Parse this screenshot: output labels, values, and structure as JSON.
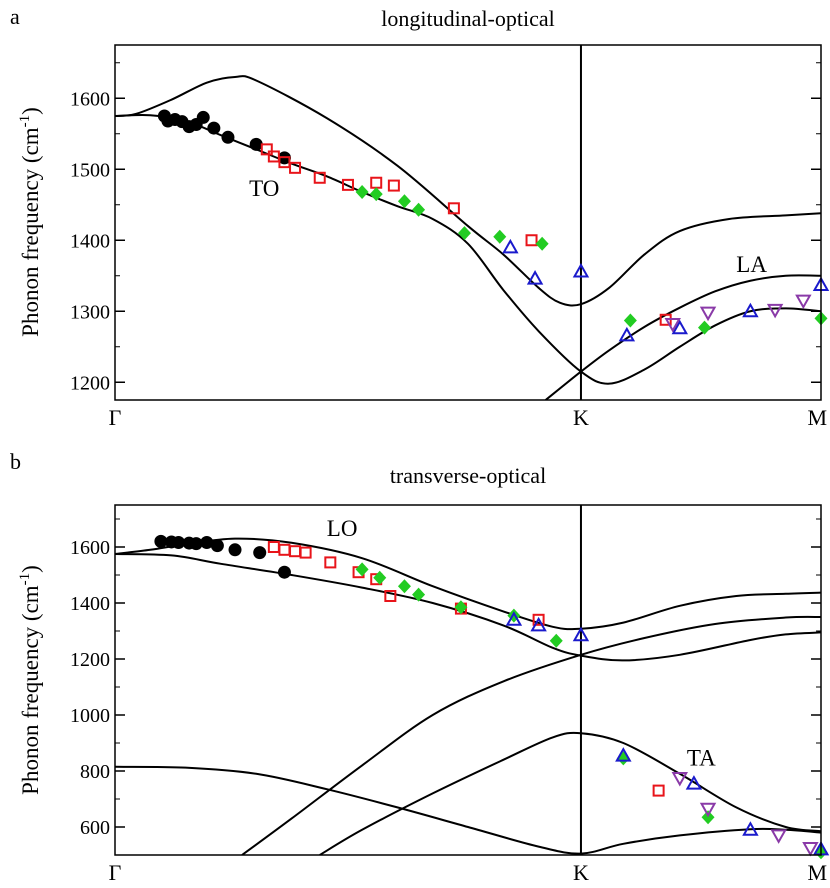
{
  "chart_data": [
    {
      "type": "scatter",
      "panel_label": "a",
      "title": "longitudinal-optical",
      "ylabel_main": "Phonon frequency (cm",
      "ylabel_sup": "-1",
      "ylabel_close": ")",
      "ylim": [
        1175,
        1675
      ],
      "yticks": [
        1200,
        1300,
        1400,
        1500,
        1600
      ],
      "xlim": [
        0,
        1
      ],
      "xticks": [
        {
          "pos": 0,
          "label": "Γ"
        },
        {
          "pos": 0.66,
          "label": "K"
        },
        {
          "pos": 1,
          "label": "M"
        }
      ],
      "annotations": [
        {
          "text": "TO",
          "x": 0.19,
          "y": 1462
        },
        {
          "text": "LA",
          "x": 0.88,
          "y": 1355
        }
      ],
      "curves": [
        [
          [
            0,
            1575
          ],
          [
            0.03,
            1578
          ],
          [
            0.08,
            1598
          ],
          [
            0.13,
            1622
          ],
          [
            0.17,
            1630
          ],
          [
            0.2,
            1625
          ],
          [
            0.3,
            1572
          ],
          [
            0.4,
            1505
          ],
          [
            0.5,
            1420
          ],
          [
            0.55,
            1380
          ],
          [
            0.6,
            1333
          ],
          [
            0.63,
            1312
          ],
          [
            0.66,
            1310
          ],
          [
            0.7,
            1333
          ],
          [
            0.75,
            1380
          ],
          [
            0.8,
            1413
          ],
          [
            0.87,
            1430
          ],
          [
            0.95,
            1435
          ],
          [
            1,
            1438
          ]
        ],
        [
          [
            0,
            1575
          ],
          [
            0.05,
            1576
          ],
          [
            0.1,
            1568
          ],
          [
            0.15,
            1548
          ],
          [
            0.2,
            1528
          ],
          [
            0.25,
            1508
          ],
          [
            0.3,
            1490
          ],
          [
            0.35,
            1468
          ],
          [
            0.4,
            1448
          ],
          [
            0.45,
            1430
          ],
          [
            0.5,
            1395
          ],
          [
            0.55,
            1330
          ],
          [
            0.6,
            1272
          ],
          [
            0.66,
            1215
          ],
          [
            0.7,
            1198
          ],
          [
            0.75,
            1218
          ],
          [
            0.8,
            1250
          ],
          [
            0.85,
            1280
          ],
          [
            0.9,
            1300
          ],
          [
            0.95,
            1304
          ],
          [
            1,
            1300
          ]
        ],
        [
          [
            0.61,
            1175
          ],
          [
            0.66,
            1215
          ],
          [
            0.7,
            1245
          ],
          [
            0.75,
            1278
          ],
          [
            0.8,
            1305
          ],
          [
            0.85,
            1328
          ],
          [
            0.9,
            1343
          ],
          [
            0.95,
            1350
          ],
          [
            1,
            1350
          ]
        ]
      ],
      "series": [
        {
          "marker": "circle",
          "color": "#000000",
          "points": [
            [
              0.07,
              1575
            ],
            [
              0.075,
              1568
            ],
            [
              0.085,
              1570
            ],
            [
              0.095,
              1567
            ],
            [
              0.105,
              1560
            ],
            [
              0.115,
              1563
            ],
            [
              0.125,
              1573
            ],
            [
              0.14,
              1558
            ],
            [
              0.16,
              1545
            ],
            [
              0.2,
              1535
            ],
            [
              0.24,
              1516
            ]
          ]
        },
        {
          "marker": "square",
          "color": "#e8141a",
          "points": [
            [
              0.215,
              1528
            ],
            [
              0.225,
              1518
            ],
            [
              0.24,
              1510
            ],
            [
              0.255,
              1502
            ],
            [
              0.29,
              1488
            ],
            [
              0.33,
              1478
            ],
            [
              0.37,
              1481
            ],
            [
              0.395,
              1477
            ],
            [
              0.48,
              1445
            ],
            [
              0.59,
              1400
            ]
          ]
        },
        {
          "marker": "diamond",
          "color": "#22cc22",
          "points": [
            [
              0.35,
              1468
            ],
            [
              0.37,
              1465
            ],
            [
              0.41,
              1455
            ],
            [
              0.43,
              1443
            ],
            [
              0.495,
              1410
            ],
            [
              0.545,
              1405
            ],
            [
              0.605,
              1395
            ],
            [
              0.73,
              1287
            ],
            [
              0.835,
              1277
            ],
            [
              1,
              1290
            ]
          ]
        },
        {
          "marker": "triangle-up",
          "color": "#1a1acc",
          "points": [
            [
              0.56,
              1390
            ],
            [
              0.595,
              1346
            ],
            [
              0.66,
              1356
            ],
            [
              0.725,
              1266
            ],
            [
              0.8,
              1276
            ],
            [
              0.9,
              1300
            ],
            [
              1,
              1337
            ]
          ]
        },
        {
          "marker": "square",
          "color": "#e8141a",
          "points": [
            [
              0.78,
              1288
            ]
          ]
        },
        {
          "marker": "triangle-down",
          "color": "#8a3aa8",
          "points": [
            [
              0.79,
              1282
            ],
            [
              0.84,
              1298
            ],
            [
              0.935,
              1302
            ],
            [
              0.975,
              1315
            ]
          ]
        }
      ]
    },
    {
      "type": "scatter",
      "panel_label": "b",
      "title": "transverse-optical",
      "ylabel_main": "Phonon frequency (cm",
      "ylabel_sup": "-1",
      "ylabel_close": ")",
      "ylim": [
        500,
        1750
      ],
      "yticks": [
        600,
        800,
        1000,
        1200,
        1400,
        1600
      ],
      "xlim": [
        0,
        1
      ],
      "xticks": [
        {
          "pos": 0,
          "label": "Γ"
        },
        {
          "pos": 0.66,
          "label": "K"
        },
        {
          "pos": 1,
          "label": "M"
        }
      ],
      "annotations": [
        {
          "text": "LO",
          "x": 0.3,
          "y": 1640
        },
        {
          "text": "TA",
          "x": 0.81,
          "y": 820
        }
      ],
      "curves": [
        [
          [
            0,
            1575
          ],
          [
            0.05,
            1590
          ],
          [
            0.1,
            1610
          ],
          [
            0.17,
            1630
          ],
          [
            0.25,
            1615
          ],
          [
            0.35,
            1560
          ],
          [
            0.45,
            1460
          ],
          [
            0.55,
            1370
          ],
          [
            0.62,
            1315
          ],
          [
            0.66,
            1308
          ],
          [
            0.72,
            1330
          ],
          [
            0.8,
            1390
          ],
          [
            0.88,
            1425
          ],
          [
            0.95,
            1433
          ],
          [
            1,
            1437
          ]
        ],
        [
          [
            0,
            1575
          ],
          [
            0.08,
            1570
          ],
          [
            0.15,
            1540
          ],
          [
            0.25,
            1500
          ],
          [
            0.35,
            1455
          ],
          [
            0.45,
            1400
          ],
          [
            0.55,
            1320
          ],
          [
            0.62,
            1240
          ],
          [
            0.66,
            1212
          ],
          [
            0.72,
            1195
          ],
          [
            0.8,
            1215
          ],
          [
            0.9,
            1268
          ],
          [
            0.95,
            1288
          ],
          [
            1,
            1295
          ]
        ],
        [
          [
            0.18,
            500
          ],
          [
            0.25,
            630
          ],
          [
            0.35,
            820
          ],
          [
            0.45,
            1000
          ],
          [
            0.55,
            1120
          ],
          [
            0.66,
            1215
          ],
          [
            0.75,
            1275
          ],
          [
            0.85,
            1325
          ],
          [
            0.95,
            1348
          ],
          [
            1,
            1350
          ]
        ],
        [
          [
            0,
            815
          ],
          [
            0.1,
            812
          ],
          [
            0.2,
            790
          ],
          [
            0.3,
            735
          ],
          [
            0.4,
            670
          ],
          [
            0.5,
            600
          ],
          [
            0.6,
            530
          ],
          [
            0.66,
            505
          ],
          [
            0.72,
            540
          ],
          [
            0.8,
            570
          ],
          [
            0.9,
            592
          ],
          [
            0.95,
            590
          ],
          [
            1,
            580
          ]
        ],
        [
          [
            0.29,
            500
          ],
          [
            0.35,
            590
          ],
          [
            0.45,
            720
          ],
          [
            0.55,
            840
          ],
          [
            0.62,
            920
          ],
          [
            0.66,
            935
          ],
          [
            0.72,
            900
          ],
          [
            0.8,
            790
          ],
          [
            0.88,
            670
          ],
          [
            0.95,
            600
          ],
          [
            1,
            585
          ]
        ]
      ],
      "series": [
        {
          "marker": "circle",
          "color": "#000000",
          "points": [
            [
              0.065,
              1620
            ],
            [
              0.08,
              1618
            ],
            [
              0.09,
              1616
            ],
            [
              0.105,
              1614
            ],
            [
              0.115,
              1612
            ],
            [
              0.13,
              1616
            ],
            [
              0.145,
              1605
            ],
            [
              0.17,
              1590
            ],
            [
              0.205,
              1580
            ],
            [
              0.24,
              1510
            ]
          ]
        },
        {
          "marker": "square",
          "color": "#e8141a",
          "points": [
            [
              0.225,
              1600
            ],
            [
              0.24,
              1590
            ],
            [
              0.255,
              1585
            ],
            [
              0.27,
              1580
            ],
            [
              0.305,
              1545
            ],
            [
              0.345,
              1510
            ],
            [
              0.37,
              1485
            ],
            [
              0.39,
              1425
            ],
            [
              0.49,
              1380
            ],
            [
              0.6,
              1340
            ],
            [
              0.77,
              730
            ]
          ]
        },
        {
          "marker": "diamond",
          "color": "#22cc22",
          "points": [
            [
              0.35,
              1520
            ],
            [
              0.375,
              1490
            ],
            [
              0.41,
              1460
            ],
            [
              0.43,
              1430
            ],
            [
              0.49,
              1385
            ],
            [
              0.565,
              1355
            ],
            [
              0.625,
              1265
            ],
            [
              0.72,
              845
            ],
            [
              0.84,
              635
            ],
            [
              1,
              510
            ]
          ]
        },
        {
          "marker": "triangle-up",
          "color": "#1a1acc",
          "points": [
            [
              0.565,
              1340
            ],
            [
              0.6,
              1320
            ],
            [
              0.66,
              1285
            ],
            [
              0.72,
              855
            ],
            [
              0.82,
              755
            ],
            [
              0.9,
              590
            ],
            [
              1,
              520
            ]
          ]
        },
        {
          "marker": "triangle-down",
          "color": "#8a3aa8",
          "points": [
            [
              0.8,
              775
            ],
            [
              0.84,
              665
            ],
            [
              0.94,
              570
            ],
            [
              0.985,
              525
            ]
          ]
        }
      ]
    }
  ]
}
